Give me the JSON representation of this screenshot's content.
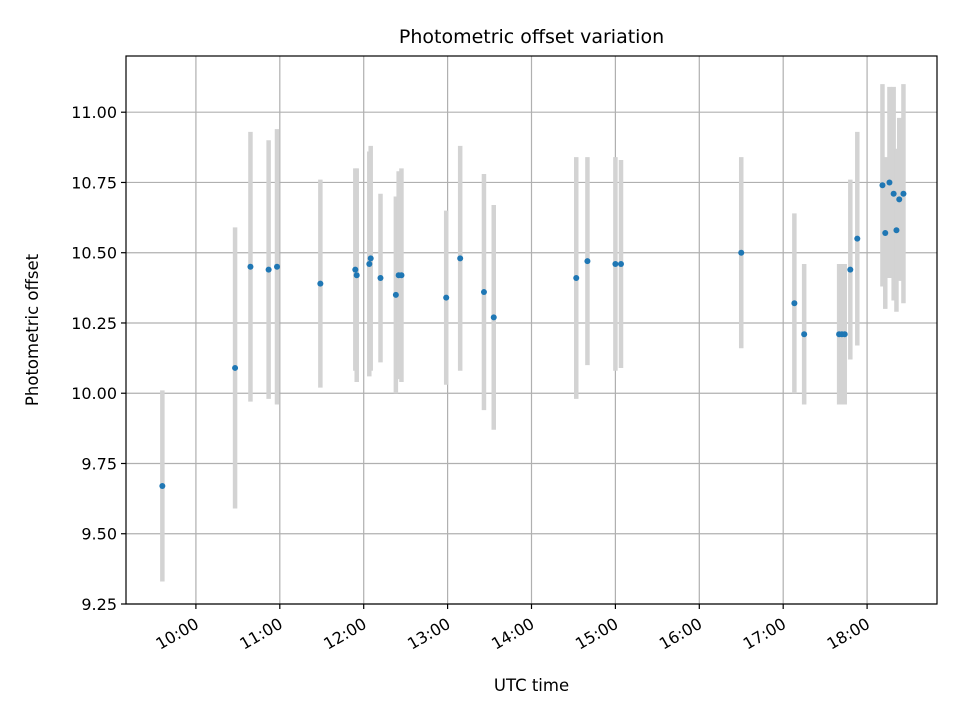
{
  "chart_data": {
    "type": "scatter",
    "title": "Photometric offset variation",
    "xlabel": "UTC time",
    "ylabel": "Photometric offset",
    "x_tick_labels": [
      "10:00",
      "11:00",
      "12:00",
      "13:00",
      "14:00",
      "15:00",
      "16:00",
      "17:00",
      "18:00"
    ],
    "y_tick_labels": [
      "9.25",
      "9.50",
      "9.75",
      "10.00",
      "10.25",
      "10.50",
      "10.75",
      "11.00"
    ],
    "xlim": [
      "09:10",
      "18:50"
    ],
    "ylim": [
      9.25,
      11.2
    ],
    "grid": true,
    "colors": {
      "point": "#1f77b4",
      "errorbar": "#d3d3d3",
      "grid": "#b0b0b0"
    },
    "points": [
      {
        "x": "09:36",
        "y": 9.67,
        "err": 0.34
      },
      {
        "x": "10:28",
        "y": 10.09,
        "err": 0.5
      },
      {
        "x": "10:39",
        "y": 10.45,
        "err": 0.48
      },
      {
        "x": "10:52",
        "y": 10.44,
        "err": 0.46
      },
      {
        "x": "10:58",
        "y": 10.45,
        "err": 0.49
      },
      {
        "x": "11:29",
        "y": 10.39,
        "err": 0.37
      },
      {
        "x": "11:54",
        "y": 10.44,
        "err": 0.36
      },
      {
        "x": "11:55",
        "y": 10.42,
        "err": 0.38
      },
      {
        "x": "12:04",
        "y": 10.46,
        "err": 0.4
      },
      {
        "x": "12:05",
        "y": 10.48,
        "err": 0.4
      },
      {
        "x": "12:12",
        "y": 10.41,
        "err": 0.3
      },
      {
        "x": "12:23",
        "y": 10.35,
        "err": 0.35
      },
      {
        "x": "12:25",
        "y": 10.42,
        "err": 0.37
      },
      {
        "x": "12:27",
        "y": 10.42,
        "err": 0.38
      },
      {
        "x": "12:59",
        "y": 10.34,
        "err": 0.31
      },
      {
        "x": "13:09",
        "y": 10.48,
        "err": 0.4
      },
      {
        "x": "13:26",
        "y": 10.36,
        "err": 0.42
      },
      {
        "x": "13:33",
        "y": 10.27,
        "err": 0.4
      },
      {
        "x": "14:32",
        "y": 10.41,
        "err": 0.43
      },
      {
        "x": "14:40",
        "y": 10.47,
        "err": 0.37
      },
      {
        "x": "15:00",
        "y": 10.46,
        "err": 0.38
      },
      {
        "x": "15:04",
        "y": 10.46,
        "err": 0.37
      },
      {
        "x": "16:30",
        "y": 10.5,
        "err": 0.34
      },
      {
        "x": "17:08",
        "y": 10.32,
        "err": 0.32
      },
      {
        "x": "17:15",
        "y": 10.21,
        "err": 0.25
      },
      {
        "x": "17:40",
        "y": 10.21,
        "err": 0.25
      },
      {
        "x": "17:42",
        "y": 10.21,
        "err": 0.25
      },
      {
        "x": "17:44",
        "y": 10.21,
        "err": 0.25
      },
      {
        "x": "17:48",
        "y": 10.44,
        "err": 0.32
      },
      {
        "x": "17:53",
        "y": 10.55,
        "err": 0.38
      },
      {
        "x": "18:11",
        "y": 10.74,
        "err": 0.36
      },
      {
        "x": "18:13",
        "y": 10.57,
        "err": 0.27
      },
      {
        "x": "18:16",
        "y": 10.75,
        "err": 0.34
      },
      {
        "x": "18:19",
        "y": 10.71,
        "err": 0.38
      },
      {
        "x": "18:21",
        "y": 10.58,
        "err": 0.29
      },
      {
        "x": "18:23",
        "y": 10.69,
        "err": 0.29
      },
      {
        "x": "18:26",
        "y": 10.71,
        "err": 0.39
      }
    ]
  }
}
